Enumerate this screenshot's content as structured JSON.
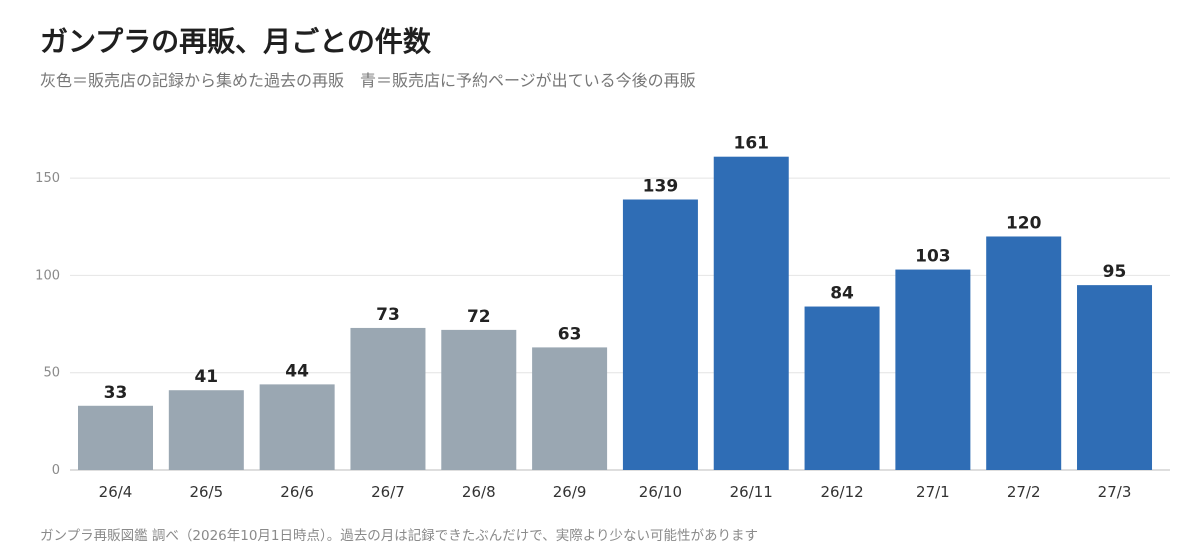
{
  "title": "ガンプラの再販、月ごとの件数",
  "subtitle": "灰色＝販売店の記録から集めた過去の再販　青＝販売店に予約ページが出ている今後の再販",
  "footer": "ガンプラ再販図鑑 調べ（2026年10月1日時点）。過去の月は記録できたぶんだけで、実際より少ない可能性があります",
  "colors": {
    "past": "#9aa7b2",
    "future": "#2f6db5",
    "grid": "#e4e4e4",
    "axis": "#bdbdbd"
  },
  "chart_data": {
    "type": "bar",
    "categories": [
      "26/4",
      "26/5",
      "26/6",
      "26/7",
      "26/8",
      "26/9",
      "26/10",
      "26/11",
      "26/12",
      "27/1",
      "27/2",
      "27/3"
    ],
    "values": [
      33,
      41,
      44,
      73,
      72,
      63,
      139,
      161,
      84,
      103,
      120,
      95
    ],
    "bar_color_keys": [
      "past",
      "past",
      "past",
      "past",
      "past",
      "past",
      "future",
      "future",
      "future",
      "future",
      "future",
      "future"
    ],
    "yticks": [
      0,
      50,
      100,
      150
    ],
    "ylim": [
      0,
      165
    ],
    "grid": true,
    "data_labels": true
  }
}
